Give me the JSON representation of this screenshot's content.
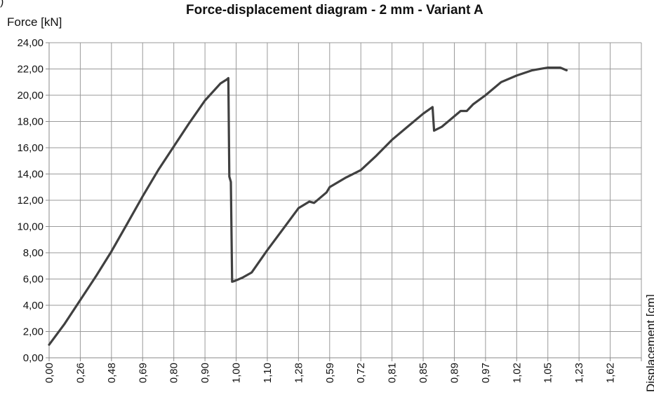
{
  "corner_mark": ")",
  "chart_data": {
    "type": "line",
    "title": "Force-displacement diagram - 2 mm - Variant A",
    "ylabel": "Force [kN]",
    "xlabel": "Displacement [cm]",
    "ylim": [
      0,
      24
    ],
    "y_ticks": [
      "0,00",
      "2,00",
      "4,00",
      "6,00",
      "8,00",
      "10,00",
      "12,00",
      "14,00",
      "16,00",
      "18,00",
      "20,00",
      "22,00",
      "24,00"
    ],
    "x_tick_labels": [
      "0,00",
      "0,26",
      "0,48",
      "0,69",
      "0,80",
      "0,90",
      "1,00",
      "1,10",
      "1,28",
      "0,59",
      "0,72",
      "0,81",
      "0,85",
      "0,89",
      "0,97",
      "1,02",
      "1,05",
      "1,23",
      "1,62"
    ],
    "grid": true,
    "legend": "none",
    "series": [
      {
        "color": "#404040",
        "points": [
          [
            0,
            1.0
          ],
          [
            0.5,
            2.6
          ],
          [
            1.0,
            4.4
          ],
          [
            1.5,
            6.2
          ],
          [
            2.0,
            8.1
          ],
          [
            2.5,
            10.2
          ],
          [
            3.0,
            12.3
          ],
          [
            3.5,
            14.3
          ],
          [
            4.0,
            16.1
          ],
          [
            4.5,
            17.9
          ],
          [
            5.0,
            19.6
          ],
          [
            5.5,
            20.9
          ],
          [
            5.7,
            21.2
          ],
          [
            5.75,
            21.3
          ],
          [
            5.78,
            13.8
          ],
          [
            5.83,
            13.4
          ],
          [
            5.87,
            5.8
          ],
          [
            5.95,
            5.85
          ],
          [
            6.2,
            6.1
          ],
          [
            6.5,
            6.5
          ],
          [
            7.0,
            8.2
          ],
          [
            7.5,
            9.8
          ],
          [
            8.0,
            11.4
          ],
          [
            8.35,
            11.9
          ],
          [
            8.5,
            11.8
          ],
          [
            8.9,
            12.6
          ],
          [
            9.0,
            13.0
          ],
          [
            9.5,
            13.7
          ],
          [
            10.0,
            14.3
          ],
          [
            10.5,
            15.4
          ],
          [
            11.0,
            16.6
          ],
          [
            11.5,
            17.6
          ],
          [
            12.0,
            18.6
          ],
          [
            12.3,
            19.1
          ],
          [
            12.35,
            17.3
          ],
          [
            12.6,
            17.6
          ],
          [
            13.0,
            18.4
          ],
          [
            13.2,
            18.8
          ],
          [
            13.4,
            18.8
          ],
          [
            13.6,
            19.3
          ],
          [
            14.0,
            20.0
          ],
          [
            14.5,
            21.0
          ],
          [
            15.0,
            21.5
          ],
          [
            15.5,
            21.9
          ],
          [
            16.0,
            22.1
          ],
          [
            16.4,
            22.1
          ],
          [
            16.6,
            21.9
          ]
        ]
      }
    ]
  }
}
